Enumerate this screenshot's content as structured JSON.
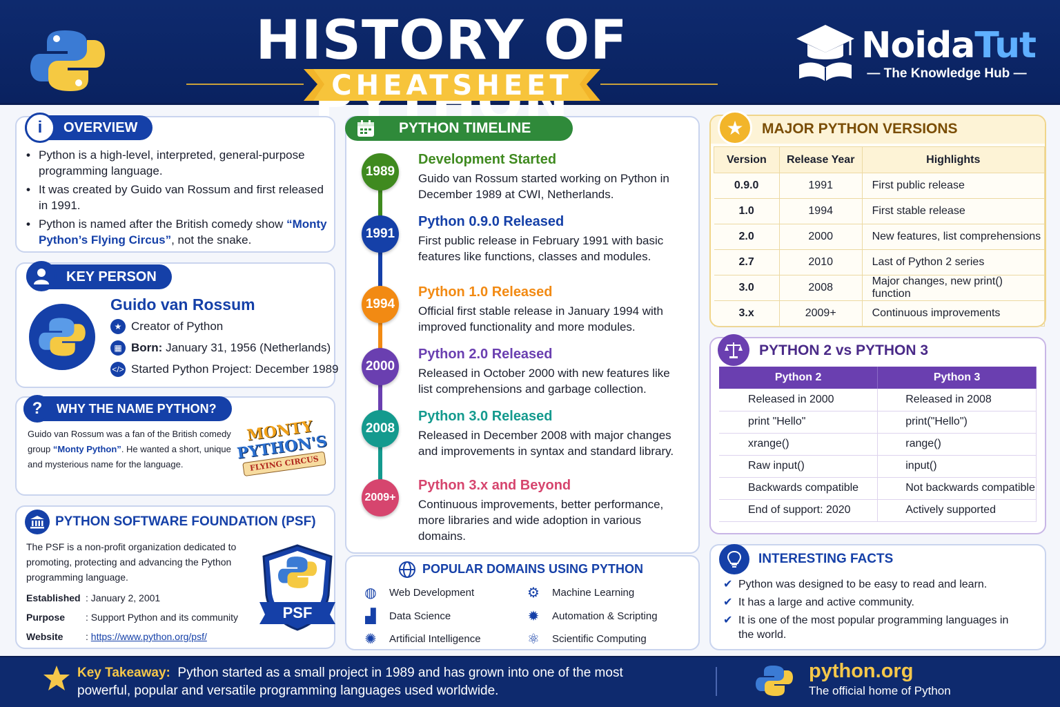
{
  "header": {
    "title": "HISTORY OF PYTHON",
    "subtitle": "CHEATSHEET",
    "brand_part1": "Noida",
    "brand_part2": "Tut",
    "brand_tagline": "— The Knowledge Hub —"
  },
  "overview": {
    "heading": "OVERVIEW",
    "bullet1": "Python is a high-level, interpreted, general-purpose programming language.",
    "bullet2": "It was created by Guido van Rossum and first released in 1991.",
    "bullet3_prefix": "Python is named after the British comedy show",
    "bullet3_highlight": "“Monty Python’s Flying Circus”",
    "bullet3_suffix": ", not the snake."
  },
  "key_person": {
    "heading": "KEY PERSON",
    "name": "Guido van Rossum",
    "role": "Creator of Python",
    "born_label": "Born:",
    "born_value": "January 31, 1956 (Netherlands)",
    "started": "Started Python Project: December 1989"
  },
  "why_name": {
    "heading": "WHY THE NAME PYTHON?",
    "text_prefix": "Guido van Rossum was a fan of the British comedy group",
    "text_highlight": "“Monty Python”",
    "text_suffix": ". He wanted a short, unique and mysterious name for the language.",
    "logo_line1": "MONTY",
    "logo_line2": "PYTHON'S",
    "logo_line3": "FLYING CIRCUS"
  },
  "psf": {
    "heading": "PYTHON SOFTWARE FOUNDATION (PSF)",
    "description": "The PSF is a non-profit organization dedicated to promoting, protecting and advancing the Python programming language.",
    "established_label": "Established",
    "established_value": ": January 2, 2001",
    "purpose_label": "Purpose",
    "purpose_value": ": Support Python and its community",
    "website_label": "Website",
    "website_colon": ": ",
    "website_value": "https://www.python.org/psf/",
    "badge": "PSF"
  },
  "timeline": {
    "heading": "PYTHON TIMELINE",
    "events": [
      {
        "year": "1989",
        "title": "Development Started",
        "desc": "Guido van Rossum started working on Python in December 1989 at CWI, Netherlands.",
        "color": "#3f8a1f"
      },
      {
        "year": "1991",
        "title": "Python 0.9.0 Released",
        "desc": "First public release in February 1991 with basic features like functions, classes and modules.",
        "color": "#1540a8"
      },
      {
        "year": "1994",
        "title": "Python 1.0 Released",
        "desc": "Official first stable release in January 1994 with improved functionality and more modules.",
        "color": "#f28a13"
      },
      {
        "year": "2000",
        "title": "Python 2.0 Released",
        "desc": "Released in October 2000 with new features like list comprehensions and garbage collection.",
        "color": "#6a3fb0"
      },
      {
        "year": "2008",
        "title": "Python 3.0 Released",
        "desc": "Released in December 2008 with major changes and improvements in syntax and standard library.",
        "color": "#149a8e"
      },
      {
        "year": "2009+",
        "title": "Python 3.x and Beyond",
        "desc": "Continuous improvements, better performance, more libraries and wide adoption in various domains.",
        "color": "#d6456e"
      }
    ]
  },
  "domains": {
    "heading": "POPULAR DOMAINS USING PYTHON",
    "items": [
      "Web Development",
      "Data Science",
      "Artificial Intelligence",
      "Machine Learning",
      "Automation & Scripting",
      "Scientific Computing"
    ]
  },
  "versions": {
    "heading": "MAJOR PYTHON VERSIONS",
    "columns": [
      "Version",
      "Release Year",
      "Highlights"
    ],
    "rows": [
      [
        "0.9.0",
        "1991",
        "First public release"
      ],
      [
        "1.0",
        "1994",
        "First stable release"
      ],
      [
        "2.0",
        "2000",
        "New features, list comprehensions"
      ],
      [
        "2.7",
        "2010",
        "Last of Python 2 series"
      ],
      [
        "3.0",
        "2008",
        "Major changes, new print() function"
      ],
      [
        "3.x",
        "2009+",
        "Continuous improvements"
      ]
    ]
  },
  "comparison": {
    "heading": "PYTHON 2 vs PYTHON 3",
    "columns": [
      "Python 2",
      "Python 3"
    ],
    "rows": [
      [
        "Released in 2000",
        "Released in 2008"
      ],
      [
        "print \"Hello\"",
        "print(\"Hello\")"
      ],
      [
        "xrange()",
        "range()"
      ],
      [
        "Raw input()",
        "input()"
      ],
      [
        "Backwards compatible",
        "Not backwards compatible"
      ],
      [
        "End of support: 2020",
        "Actively supported"
      ]
    ]
  },
  "facts": {
    "heading": "INTERESTING FACTS",
    "items": [
      "Python was designed to be easy to read and learn.",
      "It has a large and active community.",
      "It is one of the most popular programming languages in the world."
    ]
  },
  "footer": {
    "label": "Key Takeaway:",
    "text": "Python started as a small project in 1989 and has grown into one of the most powerful, popular and versatile programming languages used worldwide.",
    "site": "python.org",
    "site_sub": "The official home of Python"
  },
  "colors": {
    "navy": "#0e2a6e",
    "blue": "#1540a8",
    "green": "#3f8a1f",
    "gold": "#f5c74a",
    "purple": "#6a3fb0"
  }
}
